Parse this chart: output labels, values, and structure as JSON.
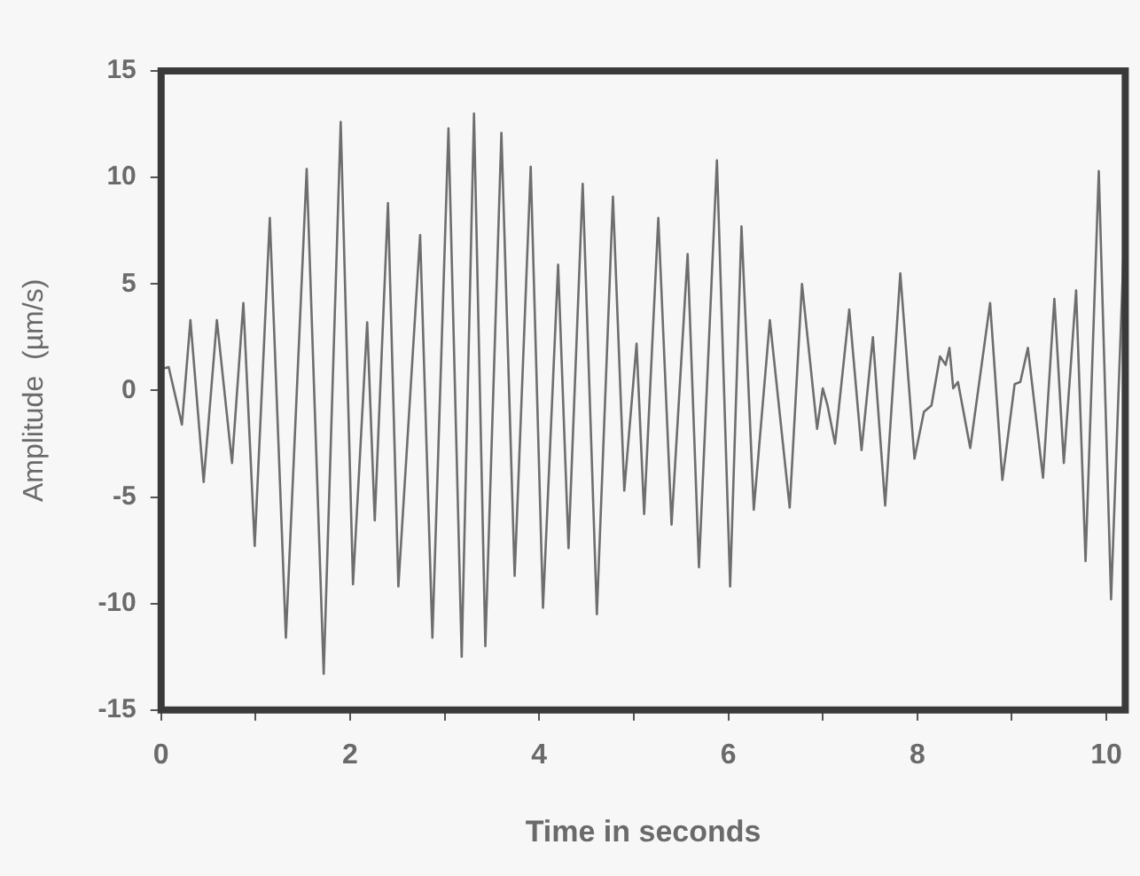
{
  "chart_data": {
    "type": "line",
    "xlabel": "Time in seconds",
    "ylabel": "Amplitude  (µm/s)",
    "xlim": [
      0,
      10.2
    ],
    "xticks": [
      0,
      {
        "value": 1,
        "label": null
      },
      2,
      {
        "value": 3,
        "label": null
      },
      4,
      {
        "value": 5,
        "label": null
      },
      6,
      {
        "value": 7,
        "label": null
      },
      8,
      {
        "value": 9,
        "label": null
      },
      10
    ],
    "ylim": [
      -15,
      15
    ],
    "yticks": [
      -15,
      -10,
      -5,
      0,
      5,
      10,
      15
    ],
    "grid": false,
    "legend": false,
    "marker": "none",
    "line_style": "solid",
    "series": [
      {
        "color": "#6e6e6e",
        "x": [
          0,
          0.08,
          0.22,
          0.31,
          0.45,
          0.59,
          0.75,
          0.87,
          0.99,
          1.15,
          1.32,
          1.54,
          1.72,
          1.9,
          2.03,
          2.18,
          2.26,
          2.4,
          2.51,
          2.74,
          2.87,
          3.04,
          3.18,
          3.31,
          3.43,
          3.6,
          3.74,
          3.91,
          4.04,
          4.2,
          4.31,
          4.46,
          4.61,
          4.78,
          4.9,
          5.03,
          5.11,
          5.26,
          5.4,
          5.57,
          5.69,
          5.88,
          6.02,
          6.14,
          6.27,
          6.44,
          6.65,
          6.78,
          6.94,
          7.0,
          7.05,
          7.13,
          7.28,
          7.41,
          7.53,
          7.66,
          7.82,
          7.97,
          8.07,
          8.15,
          8.24,
          8.3,
          8.34,
          8.38,
          8.43,
          8.56,
          8.77,
          8.9,
          9.03,
          9.09,
          9.17,
          9.33,
          9.45,
          9.55,
          9.68,
          9.78,
          9.92,
          10.05,
          10.2
        ],
        "values": [
          1.0,
          1.1,
          -1.6,
          3.3,
          -4.3,
          3.3,
          -3.4,
          4.1,
          -7.3,
          8.1,
          -11.6,
          10.4,
          -13.3,
          12.6,
          -9.1,
          3.2,
          -6.1,
          8.8,
          -9.2,
          7.3,
          -11.6,
          12.3,
          -12.5,
          13.0,
          -12.0,
          12.1,
          -8.7,
          10.5,
          -10.2,
          5.9,
          -7.4,
          9.7,
          -10.5,
          9.1,
          -4.7,
          2.2,
          -5.8,
          8.1,
          -6.3,
          6.4,
          -8.3,
          10.8,
          -9.2,
          7.7,
          -5.6,
          3.3,
          -5.5,
          5.0,
          -1.8,
          0.1,
          -0.7,
          -2.5,
          3.8,
          -2.8,
          2.5,
          -5.4,
          5.5,
          -3.2,
          -1.0,
          -0.7,
          1.6,
          1.2,
          2.0,
          0.1,
          0.4,
          -2.7,
          4.1,
          -4.2,
          0.3,
          0.4,
          2.0,
          -4.1,
          4.3,
          -3.4,
          4.7,
          -8.0,
          10.3,
          -9.8,
          8.7
        ]
      }
    ]
  }
}
